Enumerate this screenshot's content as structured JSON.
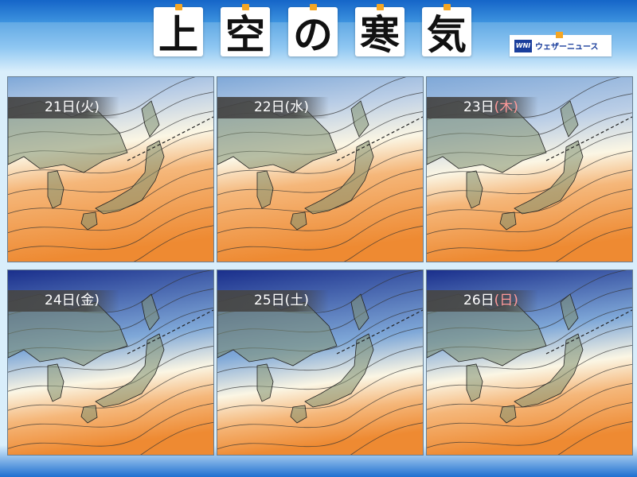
{
  "title": {
    "chars": [
      "上",
      "空",
      "の",
      "寒",
      "気"
    ]
  },
  "brand": {
    "logo": "WNI",
    "name": "ウェザーニュース"
  },
  "panels": [
    {
      "day": "21日",
      "dow": "(火)",
      "dow_color": "#ffffff",
      "cold_level": 0.35
    },
    {
      "day": "22日",
      "dow": "(水)",
      "dow_color": "#ffffff",
      "cold_level": 0.4
    },
    {
      "day": "23日",
      "dow": "(木)",
      "dow_color": "#ff9a9a",
      "cold_level": 0.55
    },
    {
      "day": "24日",
      "dow": "(金)",
      "dow_color": "#ffffff",
      "cold_level": 0.8
    },
    {
      "day": "25日",
      "dow": "(土)",
      "dow_color": "#ffffff",
      "cold_level": 0.85
    },
    {
      "day": "26日",
      "dow": "(日)",
      "dow_color": "#ff9a9a",
      "cold_level": 0.7
    }
  ],
  "colors": {
    "cold": "#1a2f8c",
    "cool": "#7fa8d8",
    "neutral": "#fbf6e4",
    "warm": "#f5b77a",
    "hot": "#ee8a32",
    "land": "#7f8f6f"
  }
}
